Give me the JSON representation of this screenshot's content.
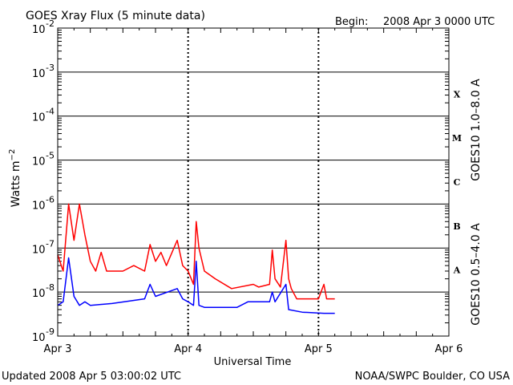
{
  "header": {
    "title": "GOES Xray Flux (5 minute data)",
    "begin_label": "Begin:",
    "begin_value": "2008 Apr 3 0000 UTC"
  },
  "footer": {
    "updated": "Updated 2008 Apr  5 03:00:02 UTC",
    "credit": "NOAA/SWPC Boulder, CO USA"
  },
  "chart_data": {
    "type": "line",
    "title": "GOES Xray Flux (5 minute data)",
    "xlabel": "Universal Time",
    "ylabel": "Watts m⁻²",
    "yscale": "log",
    "ylim": [
      1e-09,
      0.01
    ],
    "xlim": [
      "2008-04-03 00:00",
      "2008-04-06 00:00"
    ],
    "grid": true,
    "x_ticks": [
      "Apr 3",
      "Apr 4",
      "Apr 5",
      "Apr 6"
    ],
    "y_ticks": [
      {
        "base": "10",
        "exp": "-9",
        "value": 1e-09
      },
      {
        "base": "10",
        "exp": "-8",
        "value": 1e-08
      },
      {
        "base": "10",
        "exp": "-7",
        "value": 1e-07
      },
      {
        "base": "10",
        "exp": "-6",
        "value": 1e-06
      },
      {
        "base": "10",
        "exp": "-5",
        "value": 1e-05
      },
      {
        "base": "10",
        "exp": "-4",
        "value": 0.0001
      },
      {
        "base": "10",
        "exp": "-3",
        "value": 0.001
      },
      {
        "base": "10",
        "exp": "-2",
        "value": 0.01
      }
    ],
    "flare_classes": [
      {
        "label": "A",
        "value": 1e-08
      },
      {
        "label": "B",
        "value": 1e-07
      },
      {
        "label": "C",
        "value": 1e-06
      },
      {
        "label": "M",
        "value": 1e-05
      },
      {
        "label": "X",
        "value": 0.0001
      }
    ],
    "series": [
      {
        "name": "GOES10 1.0–8.0 A",
        "color": "#ff0000",
        "points": [
          [
            "2008-04-03 00:00",
            7e-08
          ],
          [
            "2008-04-03 01:00",
            3e-08
          ],
          [
            "2008-04-03 02:00",
            1e-06
          ],
          [
            "2008-04-03 03:00",
            1.5e-07
          ],
          [
            "2008-04-03 04:00",
            1e-06
          ],
          [
            "2008-04-03 05:00",
            2e-07
          ],
          [
            "2008-04-03 06:00",
            5e-08
          ],
          [
            "2008-04-03 07:00",
            3e-08
          ],
          [
            "2008-04-03 08:00",
            8e-08
          ],
          [
            "2008-04-03 09:00",
            3e-08
          ],
          [
            "2008-04-03 12:00",
            3e-08
          ],
          [
            "2008-04-03 14:00",
            4e-08
          ],
          [
            "2008-04-03 16:00",
            3e-08
          ],
          [
            "2008-04-03 17:00",
            1.2e-07
          ],
          [
            "2008-04-03 18:00",
            5e-08
          ],
          [
            "2008-04-03 19:00",
            8e-08
          ],
          [
            "2008-04-03 20:00",
            4e-08
          ],
          [
            "2008-04-03 22:00",
            1.5e-07
          ],
          [
            "2008-04-03 23:00",
            4e-08
          ],
          [
            "2008-04-04 00:00",
            3e-08
          ],
          [
            "2008-04-04 01:00",
            1.5e-08
          ],
          [
            "2008-04-04 01:30",
            4e-07
          ],
          [
            "2008-04-04 02:00",
            1e-07
          ],
          [
            "2008-04-04 03:00",
            3e-08
          ],
          [
            "2008-04-04 05:00",
            2e-08
          ],
          [
            "2008-04-04 08:00",
            1.2e-08
          ],
          [
            "2008-04-04 12:00",
            1.5e-08
          ],
          [
            "2008-04-04 13:00",
            1.3e-08
          ],
          [
            "2008-04-04 15:00",
            1.5e-08
          ],
          [
            "2008-04-04 15:30",
            9e-08
          ],
          [
            "2008-04-04 16:00",
            2e-08
          ],
          [
            "2008-04-04 17:00",
            1.3e-08
          ],
          [
            "2008-04-04 18:00",
            1.5e-07
          ],
          [
            "2008-04-04 18:30",
            2e-08
          ],
          [
            "2008-04-04 19:00",
            1.2e-08
          ],
          [
            "2008-04-04 20:00",
            7e-09
          ],
          [
            "2008-04-05 00:00",
            7e-09
          ],
          [
            "2008-04-05 01:00",
            1.5e-08
          ],
          [
            "2008-04-05 01:30",
            7e-09
          ],
          [
            "2008-04-05 03:00",
            7e-09
          ]
        ]
      },
      {
        "name": "GOES10 0.5–4.0 A",
        "color": "#0000ff",
        "points": [
          [
            "2008-04-03 00:00",
            5e-09
          ],
          [
            "2008-04-03 01:00",
            6e-09
          ],
          [
            "2008-04-03 02:00",
            6e-08
          ],
          [
            "2008-04-03 03:00",
            8e-09
          ],
          [
            "2008-04-03 04:00",
            5e-09
          ],
          [
            "2008-04-03 05:00",
            6e-09
          ],
          [
            "2008-04-03 06:00",
            5e-09
          ],
          [
            "2008-04-03 10:00",
            5.5e-09
          ],
          [
            "2008-04-03 16:00",
            7e-09
          ],
          [
            "2008-04-03 17:00",
            1.5e-08
          ],
          [
            "2008-04-03 18:00",
            8e-09
          ],
          [
            "2008-04-03 22:00",
            1.2e-08
          ],
          [
            "2008-04-03 23:00",
            7e-09
          ],
          [
            "2008-04-04 00:00",
            6e-09
          ],
          [
            "2008-04-04 01:00",
            5e-09
          ],
          [
            "2008-04-04 01:30",
            5e-08
          ],
          [
            "2008-04-04 02:00",
            5e-09
          ],
          [
            "2008-04-04 03:00",
            4.5e-09
          ],
          [
            "2008-04-04 09:00",
            4.5e-09
          ],
          [
            "2008-04-04 11:00",
            6e-09
          ],
          [
            "2008-04-04 15:00",
            6e-09
          ],
          [
            "2008-04-04 15:30",
            1e-08
          ],
          [
            "2008-04-04 16:00",
            6e-09
          ],
          [
            "2008-04-04 18:00",
            1.5e-08
          ],
          [
            "2008-04-04 18:30",
            4e-09
          ],
          [
            "2008-04-04 21:00",
            3.5e-09
          ],
          [
            "2008-04-05 01:00",
            3.3e-09
          ],
          [
            "2008-04-05 03:00",
            3.3e-09
          ]
        ]
      }
    ]
  }
}
